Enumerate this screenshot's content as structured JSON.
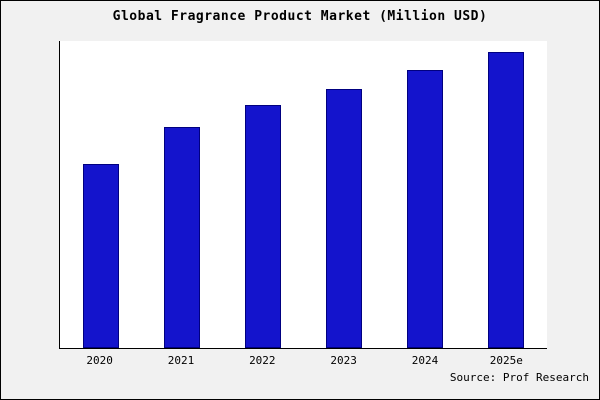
{
  "source": "Source: Prof Research",
  "chart_data": {
    "type": "bar",
    "title": "Global Fragrance Product Market (Million USD)",
    "categories": [
      "2020",
      "2021",
      "2022",
      "2023",
      "2024",
      "2025e"
    ],
    "values": [
      60,
      72,
      79,
      84.5,
      90.5,
      96.5
    ],
    "xlabel": "",
    "ylabel": "",
    "ylim": [
      0,
      100
    ],
    "grid": false,
    "legend_position": "none",
    "bar_color": "#1414CC",
    "bar_border_color": "#000080",
    "plot_background": "#ffffff",
    "outer_background": "#f1f1f1"
  }
}
